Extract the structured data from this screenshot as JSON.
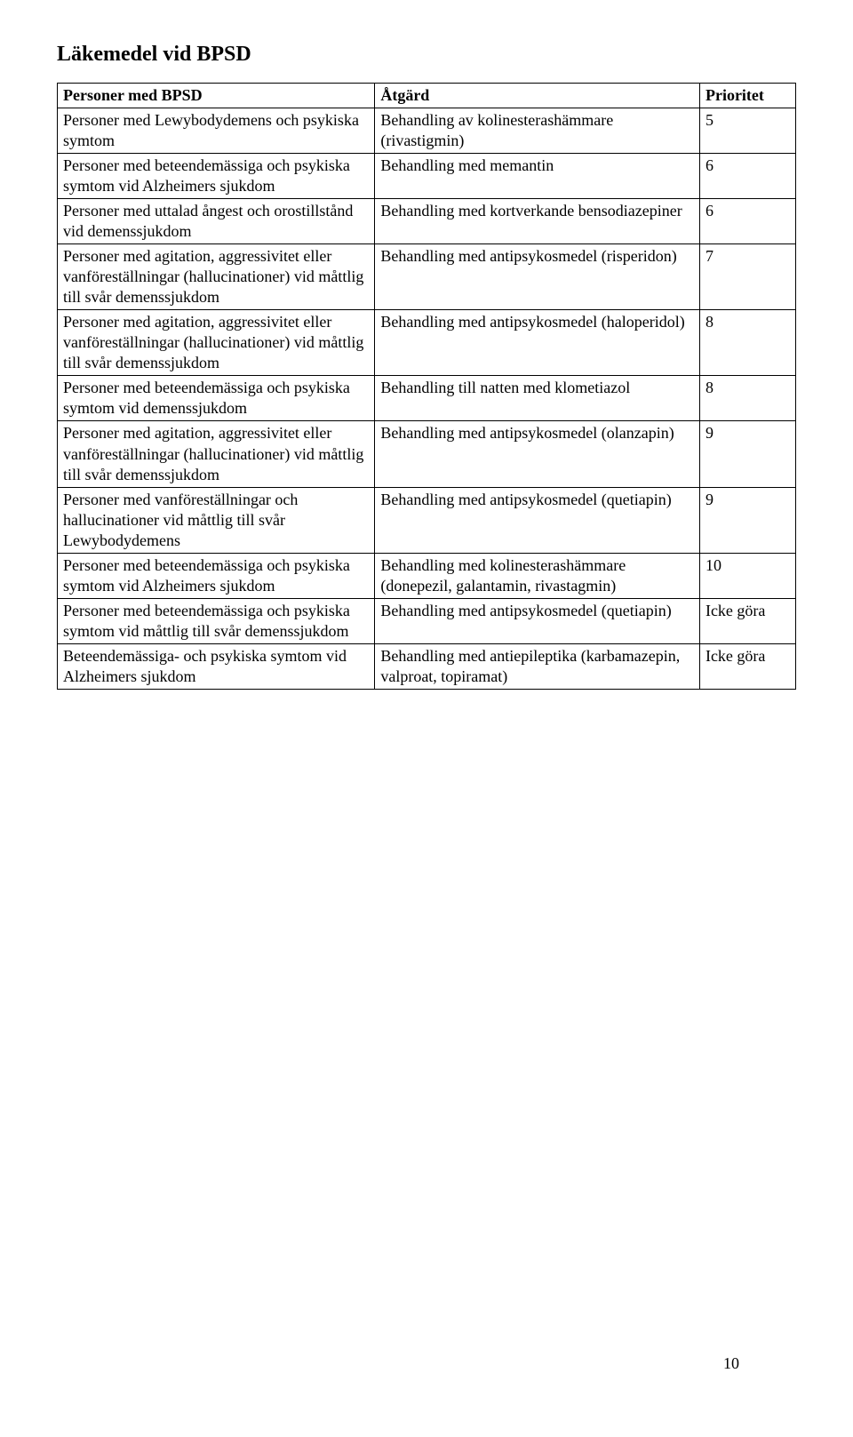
{
  "title": "Läkemedel vid BPSD",
  "table": {
    "columns": [
      {
        "label": "Personer med BPSD",
        "width_pct": 43
      },
      {
        "label": "Åtgärd",
        "width_pct": 44
      },
      {
        "label": "Prioritet",
        "width_pct": 13
      }
    ],
    "header_font_weight": "bold",
    "header_font_size_pt": 14,
    "cell_font_size_pt": 13,
    "border_color": "#000000",
    "text_color": "#000000",
    "background_color": "#ffffff",
    "rows": [
      {
        "persons": "Personer med Lewybodydemens och psykiska symtom",
        "action": "Behandling av kolinesterashämmare (rivastigmin)",
        "priority": "5"
      },
      {
        "persons": "Personer med beteendemässiga och psykiska symtom vid Alzheimers sjukdom",
        "action": "Behandling med memantin",
        "priority": "6"
      },
      {
        "persons": "Personer med uttalad ångest och orostillstånd vid demenssjukdom",
        "action": "Behandling med kortverkande bensodiazepiner",
        "priority": "6"
      },
      {
        "persons": "Personer med agitation, aggressivitet eller vanföreställningar (hallucinationer) vid måttlig till svår demenssjukdom",
        "action": "Behandling med antipsykosmedel (risperidon)",
        "priority": "7"
      },
      {
        "persons": "Personer med agitation, aggressivitet eller vanföreställningar (hallucinationer) vid måttlig till svår demenssjukdom",
        "action": "Behandling med antipsykosmedel (haloperidol)",
        "priority": "8"
      },
      {
        "persons": "Personer med beteendemässiga och psykiska symtom vid demenssjukdom",
        "action": "Behandling till natten med klometiazol",
        "priority": "8"
      },
      {
        "persons": "Personer med agitation, aggressivitet eller vanföreställningar (hallucinationer) vid måttlig till svår demenssjukdom",
        "action": "Behandling med antipsykosmedel (olanzapin)",
        "priority": "9"
      },
      {
        "persons": "Personer med vanföreställningar och hallucinationer vid måttlig till svår Lewybodydemens",
        "action": "Behandling med antipsykosmedel (quetiapin)",
        "priority": "9"
      },
      {
        "persons": "Personer med beteendemässiga och psykiska symtom vid Alzheimers sjukdom",
        "action": "Behandling med kolinesterashämmare (donepezil, galantamin, rivastagmin)",
        "priority": "10"
      },
      {
        "persons": "Personer med beteendemässiga och psykiska symtom vid måttlig till svår demenssjukdom",
        "action": "Behandling med antipsykosmedel (quetiapin)",
        "priority": "Icke göra"
      },
      {
        "persons": "Beteendemässiga- och psykiska symtom vid Alzheimers sjukdom",
        "action": "Behandling med antiepileptika (karbamazepin, valproat, topiramat)",
        "priority": "Icke göra"
      }
    ]
  },
  "page_number": "10"
}
